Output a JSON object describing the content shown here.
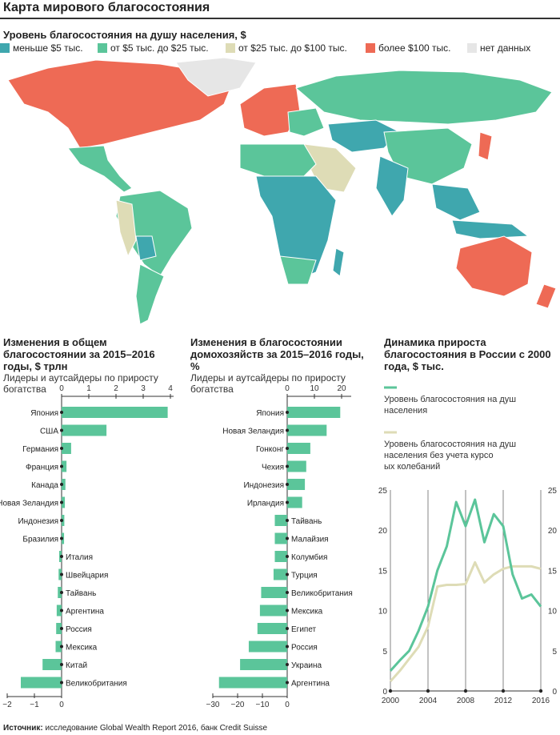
{
  "header": {
    "title": "Карта мирового благосостояния"
  },
  "map": {
    "title": "Уровень благосостояния на душу населения, $",
    "legend": [
      {
        "label": "меньше $5 тыс.",
        "color": "#3fa7ae"
      },
      {
        "label": "от $5 тыс. до $25 тыс.",
        "color": "#5bc59a"
      },
      {
        "label": "от $25 тыс. до $100 тыс.",
        "color": "#dedcb6"
      },
      {
        "label": "более $100 тыс.",
        "color": "#ee6a55"
      },
      {
        "label": "нет данных",
        "color": "#e6e6e6"
      }
    ]
  },
  "charts": {
    "total": {
      "title": "Изменения в общем благосостоянии за 2015–2016 годы, $ трлн",
      "subtitle": "Лидеры и аутсайдеры по приросту богатства"
    },
    "household": {
      "title": "Изменения в благосостоянии домохозяйств за 2015–2016 годы, %",
      "subtitle": "Лидеры и аутсайдеры по приросту богатства"
    },
    "russia": {
      "title": "Динамика прироста благосостояния в России с 2000 года, $ тыс.",
      "legend1": "Уровень благосостояния на душу населения",
      "legend2": "Уровень благосостояния на душу населения без учета курсовых колебаний"
    }
  },
  "footer": {
    "label": "Источник:",
    "text": "исследование Global Wealth Report 2016, банк Credit Suisse"
  },
  "chart_data": [
    {
      "type": "bar",
      "orientation": "horizontal",
      "title": "Изменения в общем благосостоянии за 2015–2016 годы, $ трлн",
      "subtitle": "Лидеры и аутсайдеры по приросту богатства",
      "categories": [
        "Япония",
        "США",
        "Германия",
        "Франция",
        "Канада",
        "Новая Зеландия",
        "Индонезия",
        "Бразилия",
        "Италия",
        "Швейцария",
        "Тайвань",
        "Аргентина",
        "Россия",
        "Мексика",
        "Китай",
        "Великобритания"
      ],
      "values": [
        3.9,
        1.65,
        0.35,
        0.18,
        0.14,
        0.12,
        0.1,
        0.09,
        -0.09,
        -0.11,
        -0.14,
        -0.18,
        -0.2,
        -0.22,
        -0.7,
        -1.5
      ],
      "xlim_top": [
        0,
        4
      ],
      "xticks_top": [
        0,
        1,
        2,
        3,
        4
      ],
      "xlim_bottom": [
        -2,
        0
      ],
      "xticks_bottom": [
        -2,
        -1,
        0
      ],
      "color": "#5bc59a"
    },
    {
      "type": "bar",
      "orientation": "horizontal",
      "title": "Изменения в благосостоянии домохозяйств за 2015–2016 годы, %",
      "subtitle": "Лидеры и аутсайдеры по приросту богатства",
      "categories": [
        "Япония",
        "Новая Зеландия",
        "Гонконг",
        "Чехия",
        "Индонезия",
        "Ирландия",
        "Тайвань",
        "Малайзия",
        "Колумбия",
        "Турция",
        "Великобритания",
        "Мексика",
        "Египет",
        "Россия",
        "Украина",
        "Аргентина"
      ],
      "values": [
        19.5,
        14.5,
        8.5,
        7,
        6.5,
        5.5,
        -5,
        -5,
        -5,
        -5.5,
        -10.5,
        -11,
        -12,
        -15.5,
        -19,
        -27.5
      ],
      "xlim_top": [
        0,
        20
      ],
      "xticks_top": [
        0,
        10,
        20
      ],
      "xlim_bottom": [
        -30,
        0
      ],
      "xticks_bottom": [
        -30,
        -20,
        -10,
        0
      ],
      "color": "#5bc59a"
    },
    {
      "type": "line",
      "title": "Динамика прироста благосостояния в России с 2000 года, $ тыс.",
      "x": [
        2000,
        2001,
        2002,
        2003,
        2004,
        2005,
        2006,
        2007,
        2008,
        2009,
        2010,
        2011,
        2012,
        2013,
        2014,
        2015,
        2016
      ],
      "xticks": [
        2000,
        2004,
        2008,
        2012,
        2016
      ],
      "ylim": [
        0,
        25
      ],
      "yticks": [
        0,
        5,
        10,
        15,
        20,
        25
      ],
      "series": [
        {
          "name": "Уровень благосостояния на душу населения",
          "color": "#5bc59a",
          "values": [
            2.5,
            3.8,
            5.0,
            7.5,
            10.5,
            15,
            18,
            23.5,
            20.5,
            23.8,
            18.5,
            22,
            20.5,
            14.5,
            11.5,
            12,
            10.5
          ]
        },
        {
          "name": "Уровень благосостояния на душу населения без учета курсовых колебаний",
          "color": "#dedcb6",
          "values": [
            1.2,
            2.5,
            4.0,
            5.5,
            8.0,
            13.0,
            13.2,
            13.2,
            13.3,
            16.0,
            13.5,
            14.5,
            15.2,
            15.5,
            15.5,
            15.5,
            15.2
          ]
        }
      ]
    }
  ]
}
